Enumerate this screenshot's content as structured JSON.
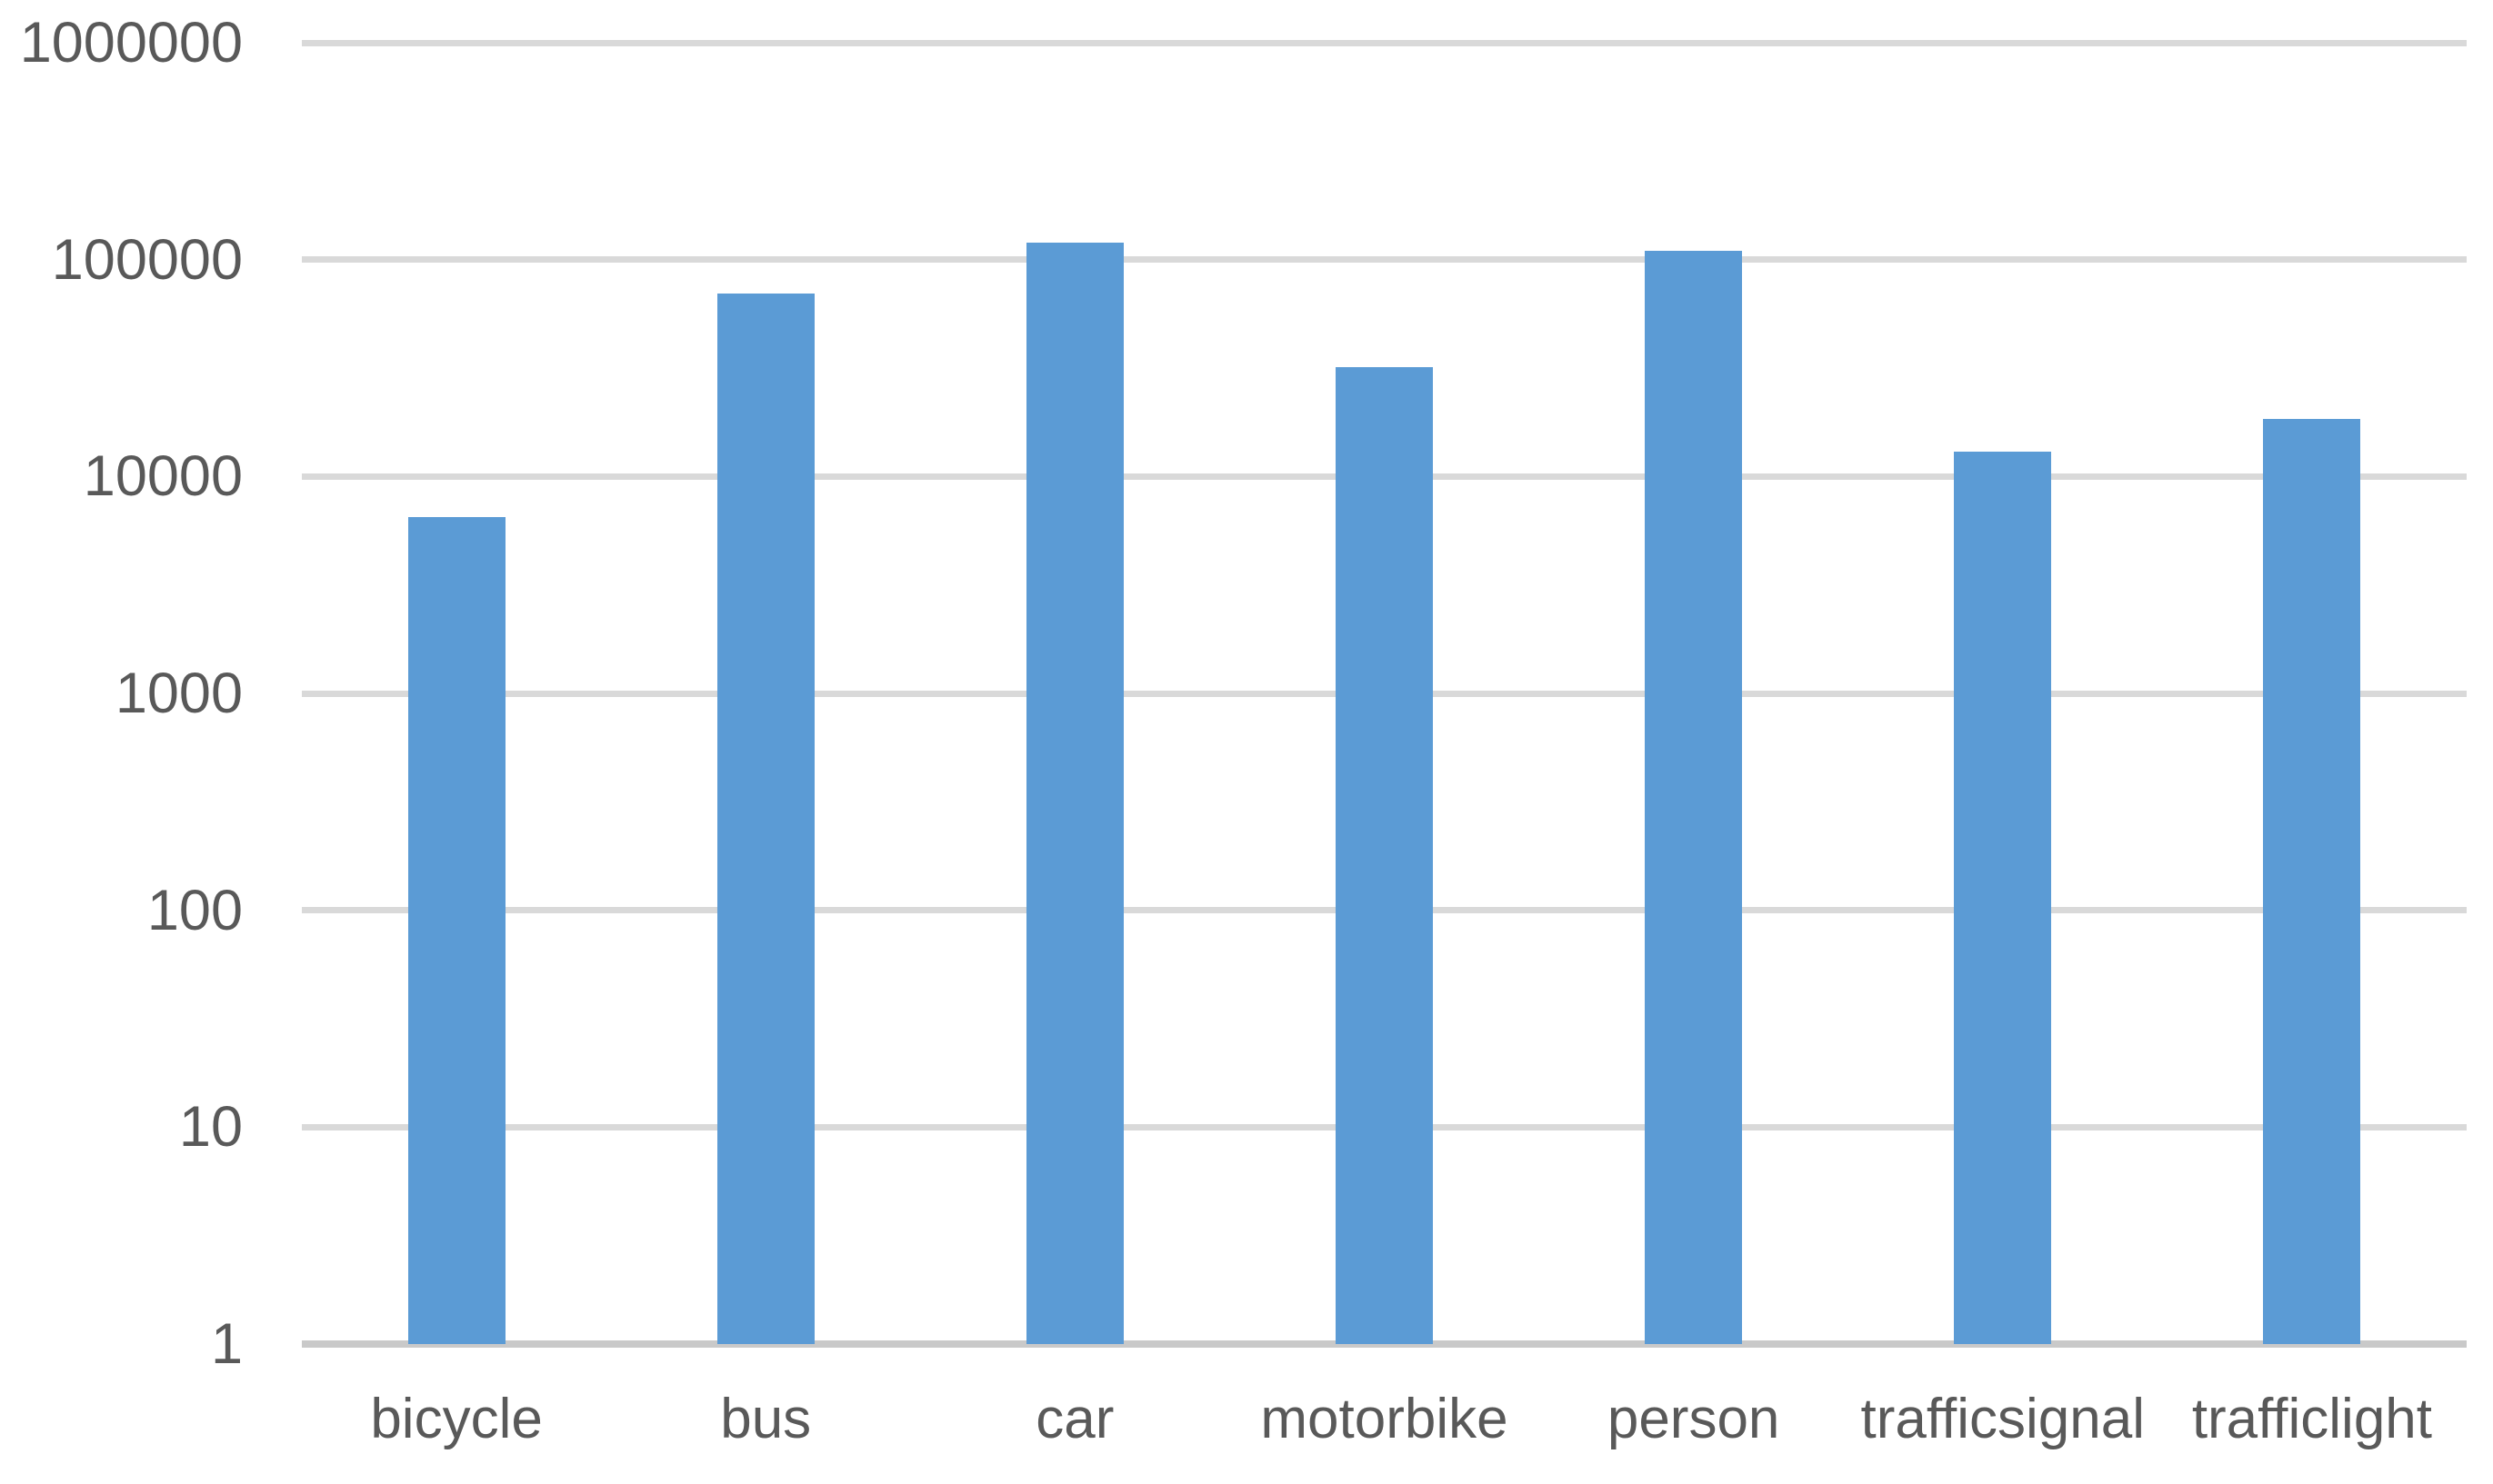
{
  "chart_data": {
    "type": "bar",
    "title": "",
    "xlabel": "",
    "ylabel": "",
    "categories": [
      "bicycle",
      "bus",
      "car",
      "motorbike",
      "person",
      "trafficsignal",
      "trafficlight"
    ],
    "values": [
      6500,
      70000,
      120000,
      32000,
      110000,
      13000,
      18500
    ],
    "series_name": "",
    "y_scale": "log10",
    "ylim": [
      1,
      1000000
    ],
    "y_ticks": [
      1,
      10,
      100,
      1000,
      10000,
      100000,
      1000000
    ],
    "y_tick_labels": [
      "1",
      "10",
      "100",
      "1000",
      "10000",
      "100000",
      "1000000"
    ],
    "grid": true,
    "legend": false,
    "colors": {
      "bar": "#5b9bd5",
      "gridline": "#d9d9d9",
      "axis_line": "#c9c9c9",
      "tick_text": "#595959"
    }
  }
}
